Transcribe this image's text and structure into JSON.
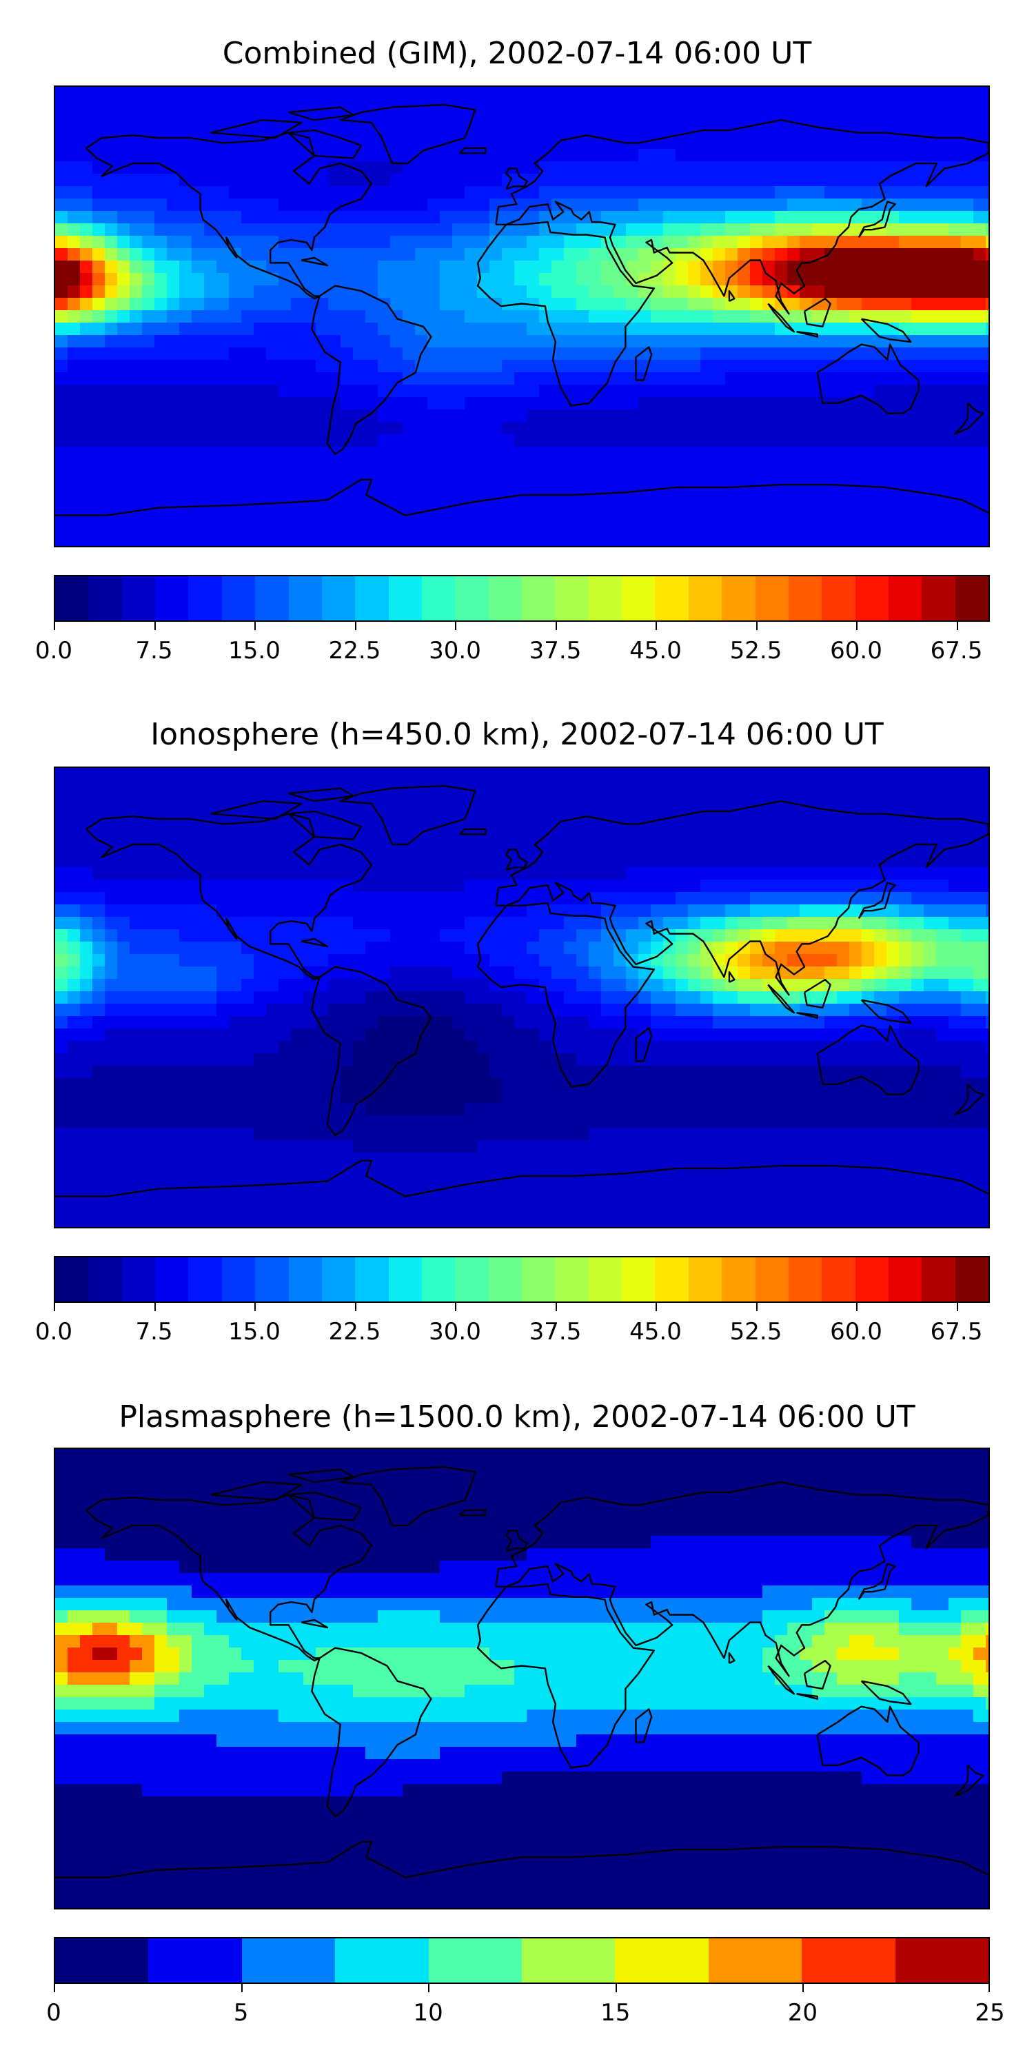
{
  "panels": [
    {
      "title": "Combined (GIM), 2002-07-14 06:00 UT",
      "colorbar": {
        "min": 0,
        "max": 70,
        "step": 2.5,
        "ticks": [
          "0.0",
          "7.5",
          "15.0",
          "22.5",
          "30.0",
          "37.5",
          "45.0",
          "52.5",
          "60.0",
          "67.5"
        ],
        "tick_values": [
          0,
          7.5,
          15,
          22.5,
          30,
          37.5,
          45,
          52.5,
          60,
          67.5
        ]
      }
    },
    {
      "title": "Ionosphere  (h=450.0 km), 2002-07-14 06:00 UT",
      "colorbar": {
        "min": 0,
        "max": 70,
        "step": 2.5,
        "ticks": [
          "0.0",
          "7.5",
          "15.0",
          "22.5",
          "30.0",
          "37.5",
          "45.0",
          "52.5",
          "60.0",
          "67.5"
        ],
        "tick_values": [
          0,
          7.5,
          15,
          22.5,
          30,
          37.5,
          45,
          52.5,
          60,
          67.5
        ]
      }
    },
    {
      "title": "Plasmasphere (h=1500.0 km), 2002-07-14 06:00 UT",
      "colorbar": {
        "min": 0,
        "max": 25,
        "step": 2.5,
        "ticks": [
          "0",
          "5",
          "10",
          "15",
          "20",
          "25"
        ],
        "tick_values": [
          0,
          5,
          10,
          15,
          20,
          25
        ]
      }
    }
  ],
  "colors": {
    "jet28": [
      "#00007f",
      "#00009f",
      "#0000c8",
      "#0000f0",
      "#0014ff",
      "#0038ff",
      "#005cff",
      "#0080ff",
      "#00a4ff",
      "#00c8ff",
      "#0becf3",
      "#2effc9",
      "#4dffaa",
      "#6aff8d",
      "#8dff6a",
      "#aaff4d",
      "#c9ff2e",
      "#e7ff0f",
      "#ffe500",
      "#ffc400",
      "#ffa000",
      "#ff7f00",
      "#ff5c00",
      "#ff3800",
      "#ff1400",
      "#e60000",
      "#b00000",
      "#7f0000"
    ],
    "jet10": [
      "#00007f",
      "#0000f0",
      "#0080ff",
      "#00e4f8",
      "#4dffaa",
      "#aaff4d",
      "#f3f500",
      "#ff9400",
      "#ff3000",
      "#b00000"
    ],
    "coastline": "#000000"
  }
}
